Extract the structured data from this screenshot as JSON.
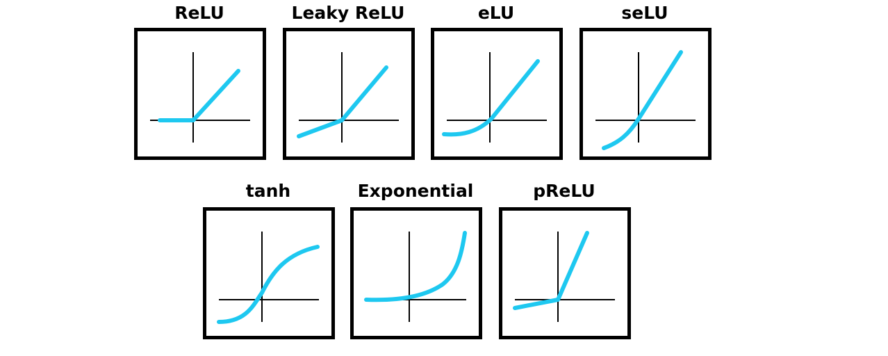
{
  "curve_color": "#1ec8f0",
  "frame_color": "#000000",
  "panels": [
    {
      "key": "relu",
      "title": "ReLU",
      "icon": "relu-curve"
    },
    {
      "key": "leaky_relu",
      "title": "Leaky ReLU",
      "icon": "leaky-relu-curve"
    },
    {
      "key": "elu",
      "title": "eLU",
      "icon": "elu-curve"
    },
    {
      "key": "selu",
      "title": "seLU",
      "icon": "selu-curve"
    },
    {
      "key": "tanh",
      "title": "tanh",
      "icon": "tanh-curve"
    },
    {
      "key": "exponential",
      "title": "Exponential",
      "icon": "exponential-curve"
    },
    {
      "key": "prelu",
      "title": "pReLU",
      "icon": "prelu-curve"
    }
  ]
}
